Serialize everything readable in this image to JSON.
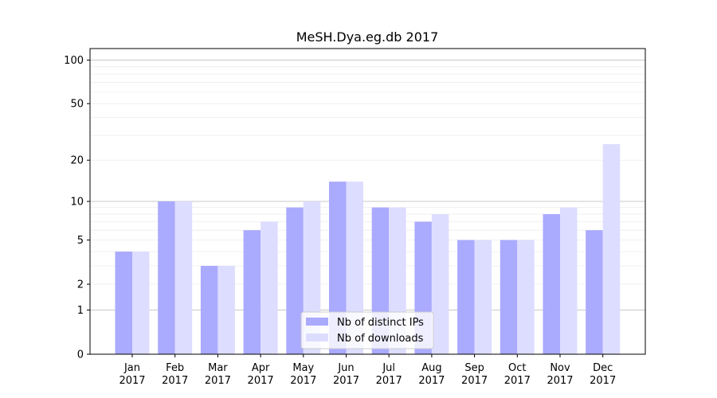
{
  "chart_data": {
    "type": "bar",
    "title": "MeSH.Dya.eg.db 2017",
    "xlabel": "",
    "ylabel": "",
    "yscale": "log(1+y)",
    "ylim": [
      0,
      120
    ],
    "yticks": [
      0,
      1,
      2,
      5,
      10,
      20,
      50,
      100
    ],
    "grid": "horizontal minor and major lines",
    "legend_position": "bottom-center",
    "categories": [
      [
        "Jan",
        "2017"
      ],
      [
        "Feb",
        "2017"
      ],
      [
        "Mar",
        "2017"
      ],
      [
        "Apr",
        "2017"
      ],
      [
        "May",
        "2017"
      ],
      [
        "Jun",
        "2017"
      ],
      [
        "Jul",
        "2017"
      ],
      [
        "Aug",
        "2017"
      ],
      [
        "Sep",
        "2017"
      ],
      [
        "Oct",
        "2017"
      ],
      [
        "Nov",
        "2017"
      ],
      [
        "Dec",
        "2017"
      ]
    ],
    "series": [
      {
        "name": "Nb of distinct IPs",
        "color": "#aaaaff",
        "values": [
          4,
          10,
          3,
          6,
          9,
          14,
          9,
          7,
          5,
          5,
          8,
          6
        ]
      },
      {
        "name": "Nb of downloads",
        "color": "#ddddff",
        "values": [
          4,
          10,
          3,
          7,
          10,
          14,
          9,
          8,
          5,
          5,
          9,
          26
        ]
      }
    ]
  }
}
